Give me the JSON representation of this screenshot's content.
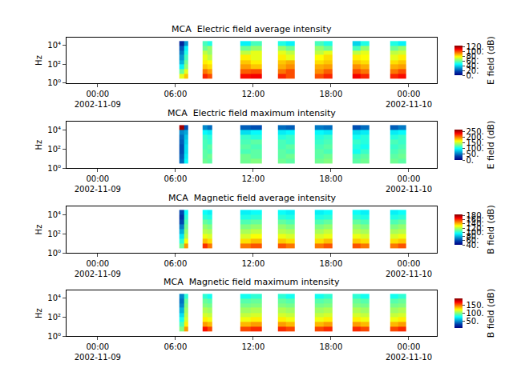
{
  "chart_data": [
    {
      "type": "heatmap",
      "title": "MCA  Electric field average intensity",
      "y_label": "Hz",
      "colorbar_title": "E field (dB)",
      "log": "y",
      "x": [
        "2002-11-09 06:18",
        "2002-11-09 06:39",
        "2002-11-09 07:00",
        "2002-11-09 08:06",
        "2002-11-09 08:28",
        "2002-11-09 08:50",
        "2002-11-09 11:00",
        "2002-11-09 11:50",
        "2002-11-09 12:40",
        "2002-11-09 13:54",
        "2002-11-09 14:33",
        "2002-11-09 15:12",
        "2002-11-09 16:45",
        "2002-11-09 17:25",
        "2002-11-09 18:06",
        "2002-11-09 19:40",
        "2002-11-09 20:18",
        "2002-11-09 20:57",
        "2002-11-09 22:33",
        "2002-11-09 23:10",
        "2002-11-09 23:48"
      ],
      "y": [
        3,
        10,
        30,
        100,
        300,
        1000,
        3000,
        10000,
        30000
      ],
      "z": [
        [
          75,
          85,
          null,
          105,
          100,
          null,
          108,
          110,
          null,
          105,
          100,
          null,
          100,
          105,
          null,
          110,
          105,
          null,
          105,
          108
        ],
        [
          60,
          75,
          null,
          95,
          90,
          null,
          98,
          100,
          null,
          95,
          100,
          null,
          92,
          98,
          null,
          100,
          95,
          null,
          95,
          100
        ],
        [
          45,
          65,
          null,
          85,
          82,
          null,
          90,
          85,
          null,
          88,
          92,
          null,
          88,
          90,
          null,
          92,
          88,
          null,
          88,
          90
        ],
        [
          35,
          60,
          null,
          80,
          78,
          null,
          85,
          80,
          null,
          85,
          88,
          null,
          82,
          85,
          null,
          85,
          82,
          null,
          82,
          85
        ],
        [
          30,
          55,
          null,
          75,
          70,
          null,
          80,
          75,
          null,
          80,
          75,
          null,
          78,
          82,
          null,
          80,
          78,
          null,
          75,
          80
        ],
        [
          25,
          50,
          null,
          70,
          65,
          null,
          70,
          75,
          null,
          75,
          70,
          null,
          70,
          75,
          null,
          70,
          75,
          null,
          70,
          72
        ],
        [
          20,
          45,
          null,
          60,
          65,
          null,
          60,
          65,
          null,
          65,
          60,
          null,
          65,
          60,
          null,
          55,
          65,
          null,
          60,
          65
        ],
        [
          10,
          30,
          null,
          55,
          50,
          null,
          45,
          55,
          null,
          50,
          45,
          null,
          55,
          50,
          null,
          40,
          50,
          null,
          50,
          45
        ]
      ],
      "zlim": [
        0,
        125
      ],
      "zticks": [
        {
          "value": 0,
          "label": "0."
        },
        {
          "value": 20,
          "label": "20."
        },
        {
          "value": 40,
          "label": "40."
        },
        {
          "value": 60,
          "label": "60."
        },
        {
          "value": 80,
          "label": "80."
        },
        {
          "value": 100,
          "label": "100."
        },
        {
          "value": 120,
          "label": "120."
        }
      ],
      "xlim": [
        "2002-11-08 21:36",
        "2002-11-10 02:10"
      ],
      "xticks": [
        {
          "value": "2002-11-09 00:00",
          "label": "00:00\n2002-11-09"
        },
        {
          "value": "2002-11-09 06:00",
          "label": "06:00"
        },
        {
          "value": "2002-11-09 12:00",
          "label": "12:00"
        },
        {
          "value": "2002-11-09 18:00",
          "label": "18:00"
        },
        {
          "value": "2002-11-10 00:00",
          "label": "00:00\n2002-11-10"
        }
      ],
      "ylim": [
        1,
        70000
      ],
      "yticks": [
        {
          "value": 1,
          "label": "10⁰"
        },
        {
          "value": 100,
          "label": "10²"
        },
        {
          "value": 10000,
          "label": "10⁴"
        }
      ]
    },
    {
      "type": "heatmap",
      "title": "MCA  Electric field maximum intensity",
      "y_label": "Hz",
      "colorbar_title": "E field (dB)",
      "log": "y",
      "x": [
        "2002-11-09 06:18",
        "2002-11-09 06:39",
        "2002-11-09 07:00",
        "2002-11-09 08:06",
        "2002-11-09 08:28",
        "2002-11-09 08:50",
        "2002-11-09 11:00",
        "2002-11-09 11:50",
        "2002-11-09 12:40",
        "2002-11-09 13:54",
        "2002-11-09 14:33",
        "2002-11-09 15:12",
        "2002-11-09 16:45",
        "2002-11-09 17:25",
        "2002-11-09 18:06",
        "2002-11-09 19:40",
        "2002-11-09 20:18",
        "2002-11-09 20:57",
        "2002-11-09 22:33",
        "2002-11-09 23:10",
        "2002-11-09 23:48"
      ],
      "y": [
        3,
        10,
        30,
        100,
        300,
        1000,
        3000,
        10000,
        30000
      ],
      "z": [
        [
          50,
          100,
          null,
          130,
          125,
          null,
          130,
          135,
          null,
          130,
          125,
          null,
          130,
          135,
          null,
          125,
          130,
          null,
          130,
          125
        ],
        [
          45,
          95,
          null,
          125,
          130,
          null,
          130,
          125,
          null,
          125,
          130,
          null,
          125,
          130,
          null,
          120,
          125,
          null,
          125,
          130
        ],
        [
          40,
          90,
          null,
          125,
          120,
          null,
          120,
          125,
          null,
          125,
          120,
          null,
          125,
          120,
          null,
          105,
          115,
          null,
          120,
          125
        ],
        [
          40,
          90,
          null,
          120,
          125,
          null,
          125,
          120,
          null,
          120,
          125,
          null,
          120,
          125,
          null,
          110,
          105,
          null,
          115,
          120
        ],
        [
          45,
          85,
          null,
          120,
          115,
          null,
          120,
          125,
          null,
          120,
          115,
          null,
          115,
          120,
          null,
          115,
          110,
          null,
          120,
          115
        ],
        [
          50,
          80,
          null,
          115,
          110,
          null,
          115,
          110,
          null,
          110,
          115,
          null,
          110,
          115,
          null,
          105,
          110,
          null,
          110,
          115
        ],
        [
          60,
          70,
          null,
          100,
          95,
          null,
          90,
          100,
          null,
          95,
          100,
          null,
          100,
          95,
          null,
          90,
          95,
          null,
          95,
          100
        ],
        [
          260,
          40,
          null,
          60,
          50,
          null,
          45,
          40,
          null,
          50,
          45,
          null,
          55,
          50,
          null,
          40,
          50,
          null,
          45,
          55
        ]
      ],
      "zlim": [
        0,
        270
      ],
      "zticks": [
        {
          "value": 0,
          "label": "0."
        },
        {
          "value": 50,
          "label": "50."
        },
        {
          "value": 100,
          "label": "100."
        },
        {
          "value": 150,
          "label": "150."
        },
        {
          "value": 200,
          "label": "200."
        },
        {
          "value": 250,
          "label": "250."
        }
      ],
      "xlim": [
        "2002-11-08 21:36",
        "2002-11-10 02:10"
      ],
      "xticks": [
        {
          "value": "2002-11-09 00:00",
          "label": "00:00\n2002-11-09"
        },
        {
          "value": "2002-11-09 06:00",
          "label": "06:00"
        },
        {
          "value": "2002-11-09 12:00",
          "label": "12:00"
        },
        {
          "value": "2002-11-09 18:00",
          "label": "18:00"
        },
        {
          "value": "2002-11-10 00:00",
          "label": "00:00\n2002-11-10"
        }
      ],
      "ylim": [
        1,
        70000
      ],
      "yticks": [
        {
          "value": 1,
          "label": "10⁰"
        },
        {
          "value": 100,
          "label": "10²"
        },
        {
          "value": 10000,
          "label": "10⁴"
        }
      ]
    },
    {
      "type": "heatmap",
      "title": "MCA  Magnetic field average intensity",
      "y_label": "Hz",
      "colorbar_title": "B field (dB)",
      "log": "y",
      "x": [
        "2002-11-09 06:18",
        "2002-11-09 06:39",
        "2002-11-09 07:00",
        "2002-11-09 08:06",
        "2002-11-09 08:28",
        "2002-11-09 08:50",
        "2002-11-09 11:00",
        "2002-11-09 11:50",
        "2002-11-09 12:40",
        "2002-11-09 13:54",
        "2002-11-09 14:33",
        "2002-11-09 15:12",
        "2002-11-09 16:45",
        "2002-11-09 17:25",
        "2002-11-09 18:06",
        "2002-11-09 19:40",
        "2002-11-09 20:18",
        "2002-11-09 20:57",
        "2002-11-09 22:33",
        "2002-11-09 23:10",
        "2002-11-09 23:48"
      ],
      "y": [
        3,
        10,
        30,
        100,
        300,
        1000,
        3000,
        10000,
        30000
      ],
      "z": [
        [
          110,
          145,
          null,
          160,
          150,
          null,
          150,
          155,
          null,
          155,
          150,
          null,
          150,
          155,
          null,
          155,
          150,
          null,
          150,
          155
        ],
        [
          100,
          130,
          null,
          140,
          135,
          null,
          135,
          140,
          null,
          138,
          135,
          null,
          135,
          140,
          null,
          138,
          135,
          null,
          135,
          138
        ],
        [
          90,
          120,
          null,
          128,
          125,
          null,
          125,
          130,
          null,
          128,
          125,
          null,
          125,
          128,
          null,
          128,
          125,
          null,
          125,
          128
        ],
        [
          80,
          115,
          null,
          120,
          118,
          null,
          118,
          122,
          null,
          120,
          118,
          null,
          118,
          122,
          null,
          120,
          118,
          null,
          118,
          120
        ],
        [
          70,
          110,
          null,
          115,
          112,
          null,
          112,
          115,
          null,
          115,
          112,
          null,
          112,
          115,
          null,
          115,
          112,
          null,
          112,
          115
        ],
        [
          60,
          105,
          null,
          108,
          105,
          null,
          105,
          108,
          null,
          108,
          105,
          null,
          105,
          108,
          null,
          108,
          105,
          null,
          105,
          108
        ],
        [
          55,
          100,
          null,
          100,
          98,
          null,
          98,
          100,
          null,
          100,
          98,
          null,
          98,
          100,
          null,
          100,
          98,
          null,
          98,
          100
        ],
        [
          60,
          95,
          null,
          95,
          92,
          null,
          92,
          95,
          null,
          95,
          92,
          null,
          92,
          95,
          null,
          95,
          92,
          null,
          92,
          95
        ]
      ],
      "zlim": [
        40,
        185
      ],
      "zticks": [
        {
          "value": 40,
          "label": "40."
        },
        {
          "value": 60,
          "label": "60."
        },
        {
          "value": 80,
          "label": "80."
        },
        {
          "value": 100,
          "label": "100."
        },
        {
          "value": 120,
          "label": "120."
        },
        {
          "value": 140,
          "label": "140."
        },
        {
          "value": 160,
          "label": "160."
        },
        {
          "value": 180,
          "label": "180."
        }
      ],
      "xlim": [
        "2002-11-08 21:36",
        "2002-11-10 02:10"
      ],
      "xticks": [
        {
          "value": "2002-11-09 00:00",
          "label": "00:00\n2002-11-09"
        },
        {
          "value": "2002-11-09 06:00",
          "label": "06:00"
        },
        {
          "value": "2002-11-09 12:00",
          "label": "12:00"
        },
        {
          "value": "2002-11-09 18:00",
          "label": "18:00"
        },
        {
          "value": "2002-11-10 00:00",
          "label": "00:00\n2002-11-10"
        }
      ],
      "ylim": [
        1,
        70000
      ],
      "yticks": [
        {
          "value": 1,
          "label": "10⁰"
        },
        {
          "value": 100,
          "label": "10²"
        },
        {
          "value": 10000,
          "label": "10⁴"
        }
      ]
    },
    {
      "type": "heatmap",
      "title": "MCA  Magnetic field maximum intensity",
      "y_label": "Hz",
      "colorbar_title": "B field (dB)",
      "log": "y",
      "x": [
        "2002-11-09 06:18",
        "2002-11-09 06:39",
        "2002-11-09 07:00",
        "2002-11-09 08:06",
        "2002-11-09 08:28",
        "2002-11-09 08:50",
        "2002-11-09 11:00",
        "2002-11-09 11:50",
        "2002-11-09 12:40",
        "2002-11-09 13:54",
        "2002-11-09 14:33",
        "2002-11-09 15:12",
        "2002-11-09 16:45",
        "2002-11-09 17:25",
        "2002-11-09 18:06",
        "2002-11-09 19:40",
        "2002-11-09 20:18",
        "2002-11-09 20:57",
        "2002-11-09 22:33",
        "2002-11-09 23:10",
        "2002-11-09 23:48"
      ],
      "y": [
        3,
        10,
        30,
        100,
        300,
        1000,
        3000,
        10000,
        30000
      ],
      "z": [
        [
          100,
          140,
          null,
          165,
          155,
          null,
          155,
          160,
          null,
          160,
          155,
          null,
          155,
          160,
          null,
          160,
          155,
          null,
          155,
          160
        ],
        [
          90,
          125,
          null,
          140,
          135,
          null,
          135,
          140,
          null,
          140,
          135,
          null,
          135,
          140,
          null,
          140,
          135,
          null,
          135,
          140
        ],
        [
          80,
          115,
          null,
          125,
          120,
          null,
          120,
          125,
          null,
          125,
          120,
          null,
          120,
          125,
          null,
          125,
          120,
          null,
          120,
          125
        ],
        [
          70,
          110,
          null,
          115,
          112,
          null,
          112,
          115,
          null,
          115,
          112,
          null,
          112,
          115,
          null,
          115,
          112,
          null,
          112,
          115
        ],
        [
          60,
          105,
          null,
          108,
          105,
          null,
          105,
          108,
          null,
          108,
          105,
          null,
          105,
          108,
          null,
          108,
          105,
          null,
          105,
          108
        ],
        [
          50,
          100,
          null,
          100,
          98,
          null,
          98,
          100,
          null,
          100,
          98,
          null,
          98,
          100,
          null,
          100,
          98,
          null,
          98,
          100
        ],
        [
          45,
          95,
          null,
          95,
          92,
          null,
          92,
          95,
          null,
          95,
          92,
          null,
          92,
          95,
          null,
          95,
          92,
          null,
          92,
          95
        ],
        [
          50,
          85,
          null,
          85,
          80,
          null,
          80,
          85,
          null,
          85,
          80,
          null,
          80,
          85,
          null,
          85,
          80,
          null,
          80,
          85
        ]
      ],
      "zlim": [
        10,
        190
      ],
      "zticks": [
        {
          "value": 50,
          "label": "50."
        },
        {
          "value": 100,
          "label": "100."
        },
        {
          "value": 150,
          "label": "150."
        }
      ],
      "xlim": [
        "2002-11-08 21:36",
        "2002-11-10 02:10"
      ],
      "xticks": [
        {
          "value": "2002-11-09 00:00",
          "label": "00:00\n2002-11-09"
        },
        {
          "value": "2002-11-09 06:00",
          "label": "06:00"
        },
        {
          "value": "2002-11-09 12:00",
          "label": "12:00"
        },
        {
          "value": "2002-11-09 18:00",
          "label": "18:00"
        },
        {
          "value": "2002-11-10 00:00",
          "label": "00:00\n2002-11-10"
        }
      ],
      "ylim": [
        1,
        70000
      ],
      "yticks": [
        {
          "value": 1,
          "label": "10⁰"
        },
        {
          "value": 100,
          "label": "10²"
        },
        {
          "value": 10000,
          "label": "10⁴"
        }
      ]
    }
  ]
}
